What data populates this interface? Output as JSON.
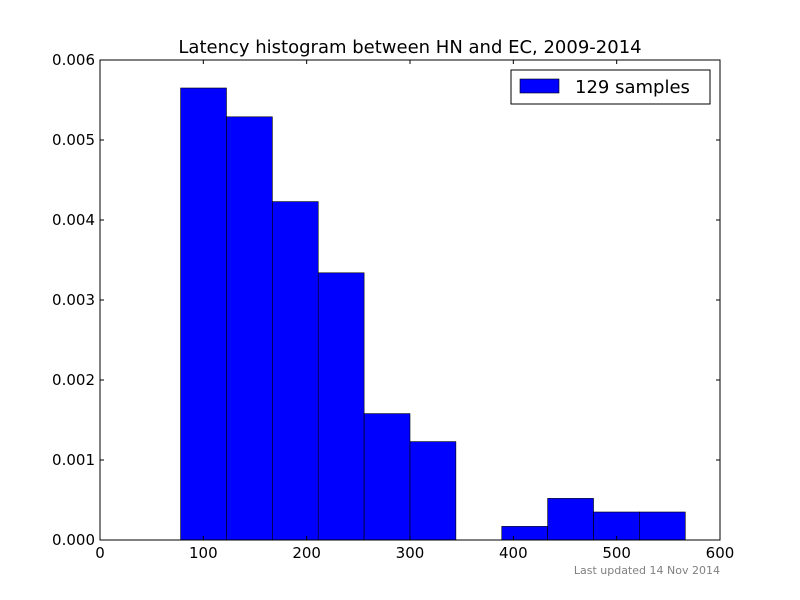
{
  "chart_data": {
    "type": "bar",
    "title": "Latency histogram between HN and EC, 2009-2014",
    "xlabel": "",
    "ylabel": "",
    "xlim": [
      0,
      600
    ],
    "ylim": [
      0,
      0.006
    ],
    "grid": false,
    "legend": {
      "placement": "top-right",
      "label": "129 samples"
    },
    "bar_color": "#0000ff",
    "bin_edges": [
      78,
      122.4,
      166.8,
      211.2,
      255.6,
      300,
      344.4,
      388.8,
      433.2,
      477.6,
      522,
      566.4
    ],
    "values": [
      0.00565,
      0.00529,
      0.00423,
      0.00334,
      0.00158,
      0.00123,
      0,
      0.00017,
      0.00052,
      0.00035,
      0.00035
    ],
    "x_ticks": [
      "0",
      "100",
      "200",
      "300",
      "400",
      "500",
      "600"
    ],
    "y_ticks": [
      "0.000",
      "0.001",
      "0.002",
      "0.003",
      "0.004",
      "0.005",
      "0.006"
    ],
    "annotation": "Last updated 14 Nov 2014"
  }
}
